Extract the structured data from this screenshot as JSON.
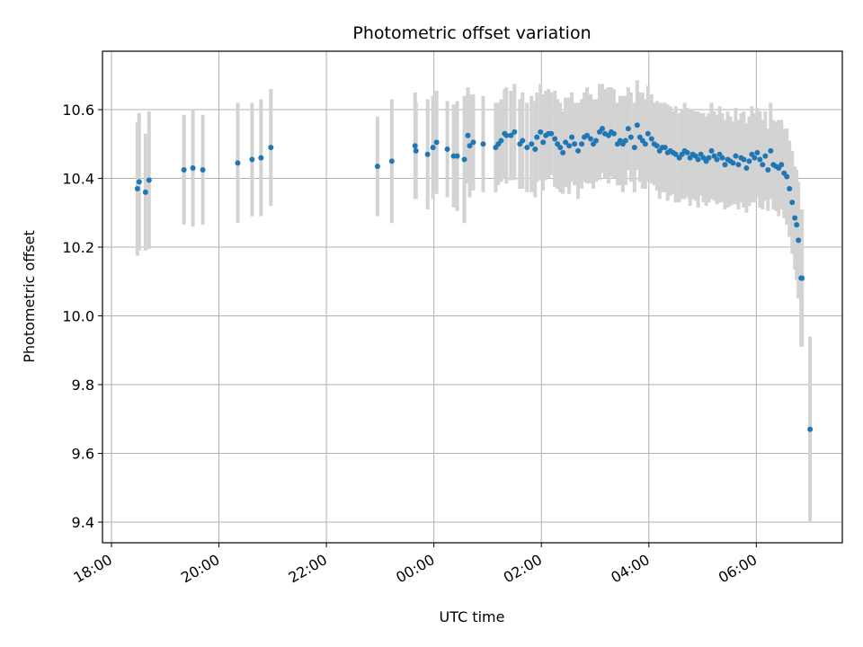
{
  "chart_data": {
    "type": "scatter",
    "title": "Photometric offset variation",
    "xlabel": "UTC time",
    "ylabel": "Photometric offset",
    "x_ticks": [
      "18:00",
      "20:00",
      "22:00",
      "00:00",
      "02:00",
      "04:00",
      "06:00"
    ],
    "y_ticks": [
      "9.4",
      "9.6",
      "9.8",
      "10.0",
      "10.2",
      "10.4",
      "10.6"
    ],
    "xlim": [
      "17:50",
      "07:36"
    ],
    "ylim": [
      9.34,
      10.77
    ],
    "grid": true,
    "colors": {
      "point": "#1f77b4",
      "errorbar": "#d3d3d3",
      "grid": "#b0b0b0"
    },
    "series": [
      {
        "points": [
          [
            "18:29",
            10.37,
            0.195
          ],
          [
            "18:31",
            10.39,
            0.2
          ],
          [
            "18:38",
            10.36,
            0.17
          ],
          [
            "18:42",
            10.395,
            0.2
          ],
          [
            "19:21",
            10.425,
            0.16
          ],
          [
            "19:31",
            10.43,
            0.17
          ],
          [
            "19:42",
            10.425,
            0.16
          ],
          [
            "20:21",
            10.445,
            0.175
          ],
          [
            "20:37",
            10.455,
            0.165
          ],
          [
            "20:47",
            10.46,
            0.17
          ],
          [
            "20:58",
            10.49,
            0.17
          ],
          [
            "22:57",
            10.435,
            0.145
          ],
          [
            "23:13",
            10.45,
            0.18
          ],
          [
            "23:39",
            10.495,
            0.155
          ],
          [
            "23:40",
            10.48,
            0.14
          ],
          [
            "23:53",
            10.47,
            0.16
          ],
          [
            "23:59",
            10.49,
            0.15
          ],
          [
            "00:03",
            10.505,
            0.15
          ],
          [
            "00:15",
            10.485,
            0.14
          ],
          [
            "00:22",
            10.465,
            0.15
          ],
          [
            "00:26",
            10.465,
            0.16
          ],
          [
            "00:34",
            10.455,
            0.185
          ],
          [
            "00:38",
            10.525,
            0.14
          ],
          [
            "00:40",
            10.495,
            0.15
          ],
          [
            "00:44",
            10.505,
            0.14
          ],
          [
            "00:55",
            10.5,
            0.14
          ],
          [
            "01:09",
            10.49,
            0.13
          ],
          [
            "01:12",
            10.5,
            0.12
          ],
          [
            "01:15",
            10.51,
            0.12
          ],
          [
            "01:19",
            10.53,
            0.13
          ],
          [
            "01:21",
            10.525,
            0.14
          ],
          [
            "01:26",
            10.525,
            0.13
          ],
          [
            "01:30",
            10.535,
            0.14
          ],
          [
            "01:36",
            10.5,
            0.13
          ],
          [
            "01:39",
            10.51,
            0.14
          ],
          [
            "01:44",
            10.49,
            0.13
          ],
          [
            "01:49",
            10.5,
            0.14
          ],
          [
            "01:53",
            10.485,
            0.14
          ],
          [
            "01:55",
            10.52,
            0.13
          ],
          [
            "01:59",
            10.535,
            0.14
          ],
          [
            "02:02",
            10.505,
            0.14
          ],
          [
            "02:05",
            10.525,
            0.13
          ],
          [
            "02:08",
            10.53,
            0.13
          ],
          [
            "02:11",
            10.53,
            0.12
          ],
          [
            "02:15",
            10.515,
            0.14
          ],
          [
            "02:18",
            10.5,
            0.13
          ],
          [
            "02:21",
            10.49,
            0.13
          ],
          [
            "02:24",
            10.475,
            0.12
          ],
          [
            "02:27",
            10.505,
            0.13
          ],
          [
            "02:31",
            10.495,
            0.14
          ],
          [
            "02:34",
            10.52,
            0.13
          ],
          [
            "02:37",
            10.5,
            0.12
          ],
          [
            "02:41",
            10.48,
            0.14
          ],
          [
            "02:45",
            10.5,
            0.13
          ],
          [
            "02:48",
            10.52,
            0.13
          ],
          [
            "02:51",
            10.525,
            0.14
          ],
          [
            "02:55",
            10.515,
            0.13
          ],
          [
            "02:58",
            10.5,
            0.13
          ],
          [
            "03:01",
            10.51,
            0.12
          ],
          [
            "03:05",
            10.535,
            0.14
          ],
          [
            "03:08",
            10.545,
            0.13
          ],
          [
            "03:11",
            10.53,
            0.13
          ],
          [
            "03:15",
            10.525,
            0.14
          ],
          [
            "03:18",
            10.535,
            0.13
          ],
          [
            "03:21",
            10.53,
            0.13
          ],
          [
            "03:25",
            10.5,
            0.12
          ],
          [
            "03:28",
            10.51,
            0.13
          ],
          [
            "03:31",
            10.5,
            0.14
          ],
          [
            "03:34",
            10.51,
            0.13
          ],
          [
            "03:37",
            10.545,
            0.12
          ],
          [
            "03:40",
            10.52,
            0.13
          ],
          [
            "03:44",
            10.49,
            0.13
          ],
          [
            "03:47",
            10.555,
            0.13
          ],
          [
            "03:50",
            10.52,
            0.13
          ],
          [
            "03:53",
            10.51,
            0.14
          ],
          [
            "03:56",
            10.5,
            0.13
          ],
          [
            "03:59",
            10.53,
            0.14
          ],
          [
            "04:03",
            10.515,
            0.13
          ],
          [
            "04:06",
            10.5,
            0.12
          ],
          [
            "04:09",
            10.495,
            0.13
          ],
          [
            "04:12",
            10.48,
            0.14
          ],
          [
            "04:15",
            10.49,
            0.13
          ],
          [
            "04:18",
            10.49,
            0.13
          ],
          [
            "04:21",
            10.475,
            0.14
          ],
          [
            "04:24",
            10.48,
            0.13
          ],
          [
            "04:27",
            10.475,
            0.12
          ],
          [
            "04:30",
            10.47,
            0.14
          ],
          [
            "04:34",
            10.46,
            0.13
          ],
          [
            "04:37",
            10.47,
            0.13
          ],
          [
            "04:40",
            10.48,
            0.14
          ],
          [
            "04:43",
            10.475,
            0.13
          ],
          [
            "04:46",
            10.46,
            0.14
          ],
          [
            "04:49",
            10.47,
            0.13
          ],
          [
            "04:52",
            10.465,
            0.13
          ],
          [
            "04:55",
            10.455,
            0.14
          ],
          [
            "04:58",
            10.47,
            0.12
          ],
          [
            "05:01",
            10.46,
            0.13
          ],
          [
            "05:04",
            10.45,
            0.13
          ],
          [
            "05:07",
            10.46,
            0.13
          ],
          [
            "05:10",
            10.48,
            0.14
          ],
          [
            "05:13",
            10.465,
            0.13
          ],
          [
            "05:16",
            10.455,
            0.13
          ],
          [
            "05:19",
            10.47,
            0.14
          ],
          [
            "05:22",
            10.46,
            0.13
          ],
          [
            "05:25",
            10.44,
            0.13
          ],
          [
            "05:28",
            10.455,
            0.14
          ],
          [
            "05:31",
            10.45,
            0.13
          ],
          [
            "05:34",
            10.445,
            0.12
          ],
          [
            "05:37",
            10.465,
            0.14
          ],
          [
            "05:40",
            10.44,
            0.13
          ],
          [
            "05:43",
            10.46,
            0.13
          ],
          [
            "05:46",
            10.455,
            0.14
          ],
          [
            "05:49",
            10.43,
            0.13
          ],
          [
            "05:52",
            10.45,
            0.13
          ],
          [
            "05:55",
            10.47,
            0.14
          ],
          [
            "05:58",
            10.46,
            0.13
          ],
          [
            "06:01",
            10.475,
            0.13
          ],
          [
            "06:04",
            10.455,
            0.14
          ],
          [
            "06:07",
            10.44,
            0.13
          ],
          [
            "06:10",
            10.465,
            0.13
          ],
          [
            "06:13",
            10.425,
            0.12
          ],
          [
            "06:16",
            10.48,
            0.14
          ],
          [
            "06:19",
            10.44,
            0.13
          ],
          [
            "06:22",
            10.435,
            0.13
          ],
          [
            "06:25",
            10.43,
            0.14
          ],
          [
            "06:28",
            10.44,
            0.13
          ],
          [
            "06:31",
            10.415,
            0.13
          ],
          [
            "06:34",
            10.405,
            0.14
          ],
          [
            "06:37",
            10.37,
            0.14
          ],
          [
            "06:40",
            10.33,
            0.15
          ],
          [
            "06:43",
            10.285,
            0.15
          ],
          [
            "06:45",
            10.265,
            0.16
          ],
          [
            "06:47",
            10.22,
            0.17
          ],
          [
            "06:50",
            10.11,
            0.2
          ],
          [
            "06:51",
            10.11,
            0.2
          ],
          [
            "07:00",
            9.67,
            0.27
          ]
        ]
      }
    ]
  }
}
